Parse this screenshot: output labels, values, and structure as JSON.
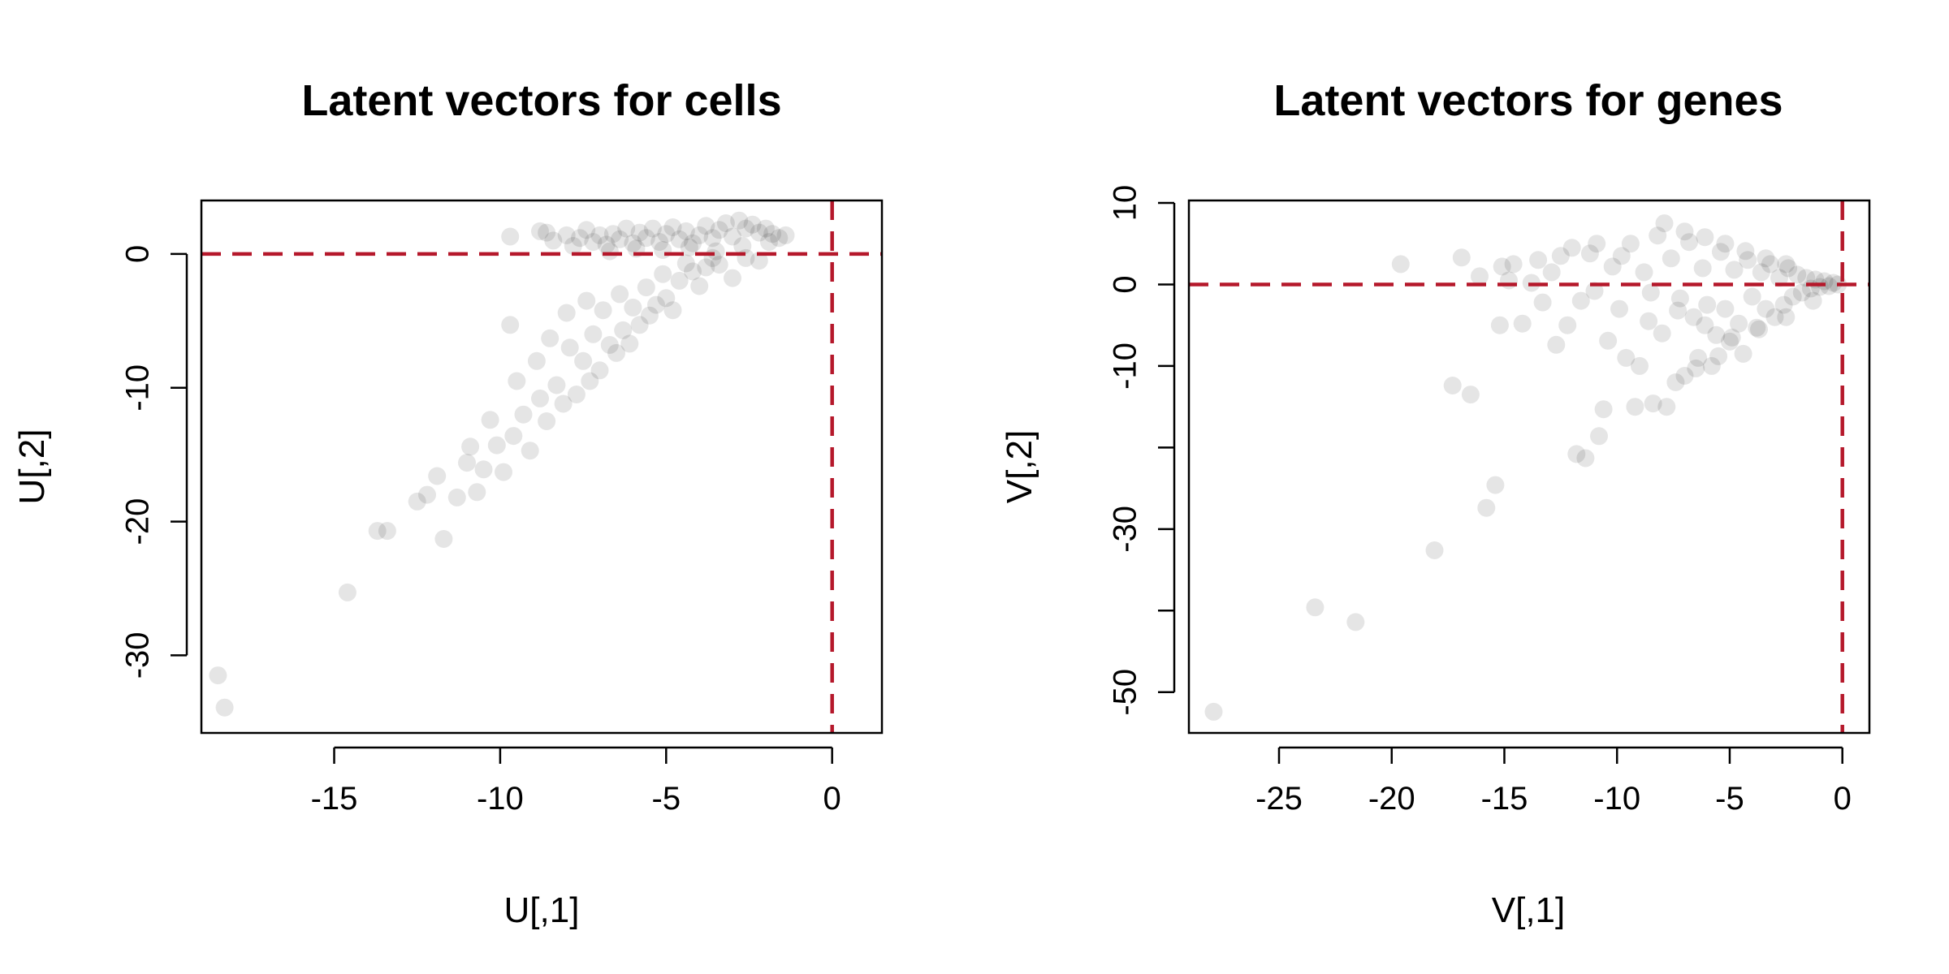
{
  "chart_data": [
    {
      "type": "scatter",
      "title": "Latent vectors for cells",
      "xlabel": "U[,1]",
      "ylabel": "U[,2]",
      "xlim": [
        -19,
        1.5
      ],
      "ylim": [
        -35.8,
        4
      ],
      "xticks": [
        -15,
        -10,
        -5,
        0
      ],
      "yticks": [
        0,
        -10,
        -20,
        -30
      ],
      "xtick_labels": [
        "-15",
        "-10",
        "-5",
        "0"
      ],
      "ytick_labels": [
        "0",
        "-10",
        "-20",
        "-30"
      ],
      "hline": 0,
      "vline": 0,
      "reference_line_color": "#B5182B",
      "point_color": "#000000",
      "point_alpha": 0.1,
      "grid": false,
      "points": [
        [
          -18.5,
          -31.5
        ],
        [
          -18.3,
          -33.9
        ],
        [
          -14.6,
          -25.3
        ],
        [
          -13.7,
          -20.7
        ],
        [
          -13.4,
          -20.7
        ],
        [
          -12.5,
          -18.5
        ],
        [
          -12.2,
          -18.0
        ],
        [
          -11.9,
          -16.6
        ],
        [
          -11.7,
          -21.3
        ],
        [
          -11.3,
          -18.2
        ],
        [
          -11.0,
          -15.6
        ],
        [
          -10.9,
          -14.4
        ],
        [
          -10.7,
          -17.8
        ],
        [
          -10.5,
          -16.1
        ],
        [
          -10.3,
          -12.4
        ],
        [
          -10.1,
          -14.3
        ],
        [
          -9.9,
          -16.3
        ],
        [
          -9.7,
          -5.3
        ],
        [
          -9.6,
          -13.6
        ],
        [
          -9.5,
          -9.5
        ],
        [
          -9.3,
          -12.0
        ],
        [
          -9.1,
          -14.7
        ],
        [
          -8.9,
          -8.0
        ],
        [
          -8.8,
          -10.8
        ],
        [
          -8.6,
          -12.5
        ],
        [
          -8.5,
          -6.3
        ],
        [
          -8.3,
          -9.8
        ],
        [
          -8.1,
          -11.2
        ],
        [
          -8.0,
          -4.4
        ],
        [
          -7.9,
          -7.0
        ],
        [
          -7.7,
          -10.5
        ],
        [
          -7.5,
          -8.0
        ],
        [
          -7.4,
          -3.5
        ],
        [
          -7.3,
          -9.5
        ],
        [
          -7.2,
          -6.0
        ],
        [
          -7.0,
          -8.7
        ],
        [
          -6.9,
          -4.2
        ],
        [
          -6.7,
          -6.8
        ],
        [
          -6.5,
          -7.4
        ],
        [
          -6.4,
          -3.0
        ],
        [
          -6.3,
          -5.7
        ],
        [
          -6.1,
          -6.7
        ],
        [
          -6.0,
          -4.0
        ],
        [
          -5.8,
          -5.3
        ],
        [
          -5.6,
          -2.5
        ],
        [
          -5.5,
          -4.6
        ],
        [
          -5.3,
          -3.8
        ],
        [
          -5.1,
          -1.5
        ],
        [
          -5.0,
          -3.3
        ],
        [
          -4.8,
          -4.2
        ],
        [
          -4.6,
          -2.0
        ],
        [
          -4.4,
          -0.7
        ],
        [
          -4.2,
          -1.3
        ],
        [
          -4.0,
          -2.4
        ],
        [
          -3.8,
          -1.0
        ],
        [
          -3.6,
          -0.3
        ],
        [
          -3.4,
          -0.8
        ],
        [
          -3.0,
          -1.8
        ],
        [
          -2.6,
          -0.3
        ],
        [
          -2.2,
          -0.5
        ],
        [
          -9.7,
          1.3
        ],
        [
          -8.8,
          1.7
        ],
        [
          -8.6,
          1.6
        ],
        [
          -8.4,
          1.0
        ],
        [
          -8.0,
          1.4
        ],
        [
          -7.8,
          0.6
        ],
        [
          -7.6,
          1.2
        ],
        [
          -7.4,
          1.8
        ],
        [
          -7.2,
          0.9
        ],
        [
          -7.0,
          1.4
        ],
        [
          -6.8,
          0.7
        ],
        [
          -6.6,
          1.5
        ],
        [
          -6.4,
          1.1
        ],
        [
          -6.2,
          1.9
        ],
        [
          -6.0,
          0.8
        ],
        [
          -5.8,
          1.6
        ],
        [
          -5.6,
          1.2
        ],
        [
          -5.4,
          1.9
        ],
        [
          -5.2,
          0.9
        ],
        [
          -5.0,
          1.5
        ],
        [
          -4.8,
          2.0
        ],
        [
          -4.6,
          1.1
        ],
        [
          -4.4,
          1.7
        ],
        [
          -4.2,
          0.8
        ],
        [
          -4.0,
          1.4
        ],
        [
          -3.8,
          2.1
        ],
        [
          -3.6,
          1.2
        ],
        [
          -3.4,
          1.8
        ],
        [
          -3.2,
          2.3
        ],
        [
          -3.0,
          1.3
        ],
        [
          -2.8,
          2.5
        ],
        [
          -2.6,
          1.9
        ],
        [
          -2.4,
          2.2
        ],
        [
          -2.2,
          1.6
        ],
        [
          -2.0,
          1.9
        ],
        [
          -1.8,
          1.5
        ],
        [
          -1.6,
          1.2
        ],
        [
          -1.4,
          1.4
        ],
        [
          -6.7,
          0.2
        ],
        [
          -5.9,
          0.4
        ],
        [
          -5.1,
          0.3
        ],
        [
          -4.3,
          0.5
        ],
        [
          -3.5,
          0.2
        ],
        [
          -2.7,
          0.6
        ],
        [
          -1.9,
          0.9
        ]
      ]
    },
    {
      "type": "scatter",
      "title": "Latent vectors for genes",
      "xlabel": "V[,1]",
      "ylabel": "V[,2]",
      "xlim": [
        -29,
        1.2
      ],
      "ylim": [
        -55,
        10.3
      ],
      "xticks": [
        -25,
        -20,
        -15,
        -10,
        -5,
        0
      ],
      "yticks": [
        10,
        0,
        -10,
        -20,
        -30,
        -40,
        -50
      ],
      "xtick_labels": [
        "-25",
        "-20",
        "-15",
        "-10",
        "-5",
        "0"
      ],
      "ytick_labels": [
        "10",
        "0",
        "-10",
        "",
        "-30",
        "",
        "-50"
      ],
      "hline": 0,
      "vline": 0,
      "reference_line_color": "#B5182B",
      "point_color": "#000000",
      "point_alpha": 0.1,
      "grid": false,
      "points": [
        [
          -27.9,
          -52.4
        ],
        [
          -23.4,
          -39.6
        ],
        [
          -21.6,
          -41.4
        ],
        [
          -19.6,
          2.5
        ],
        [
          -18.1,
          -32.6
        ],
        [
          -17.3,
          -12.4
        ],
        [
          -16.9,
          3.3
        ],
        [
          -16.5,
          -13.5
        ],
        [
          -16.1,
          1.0
        ],
        [
          -15.8,
          -27.4
        ],
        [
          -15.4,
          -24.6
        ],
        [
          -15.2,
          -5.0
        ],
        [
          -15.1,
          2.2
        ],
        [
          -14.6,
          2.5
        ],
        [
          -14.2,
          -4.8
        ],
        [
          -13.8,
          0.2
        ],
        [
          -13.3,
          -2.2
        ],
        [
          -12.9,
          1.5
        ],
        [
          -12.7,
          -7.4
        ],
        [
          -12.5,
          3.5
        ],
        [
          -12.2,
          -5.0
        ],
        [
          -11.8,
          -20.8
        ],
        [
          -11.6,
          -2.0
        ],
        [
          -11.4,
          -21.3
        ],
        [
          -11.2,
          3.8
        ],
        [
          -11.0,
          -0.8
        ],
        [
          -10.8,
          -18.6
        ],
        [
          -10.6,
          -15.3
        ],
        [
          -10.4,
          -6.9
        ],
        [
          -10.2,
          2.2
        ],
        [
          -9.9,
          -3.0
        ],
        [
          -9.6,
          -9.0
        ],
        [
          -9.4,
          5.0
        ],
        [
          -9.2,
          -15.0
        ],
        [
          -9.0,
          -10.0
        ],
        [
          -8.8,
          1.5
        ],
        [
          -8.6,
          -4.5
        ],
        [
          -8.4,
          -14.6
        ],
        [
          -8.2,
          6.0
        ],
        [
          -8.0,
          -6.0
        ],
        [
          -7.8,
          -15.0
        ],
        [
          -7.6,
          3.2
        ],
        [
          -7.4,
          -12.0
        ],
        [
          -7.2,
          -1.7
        ],
        [
          -7.0,
          -11.2
        ],
        [
          -6.8,
          5.2
        ],
        [
          -6.6,
          -4.0
        ],
        [
          -6.4,
          -9.0
        ],
        [
          -6.2,
          2.0
        ],
        [
          -6.0,
          -2.5
        ],
        [
          -5.8,
          -10.0
        ],
        [
          -5.6,
          -6.2
        ],
        [
          -5.4,
          4.0
        ],
        [
          -5.2,
          -3.0
        ],
        [
          -5.0,
          -7.0
        ],
        [
          -4.8,
          1.8
        ],
        [
          -4.6,
          -4.8
        ],
        [
          -4.4,
          -8.5
        ],
        [
          -4.2,
          3.0
        ],
        [
          -4.0,
          -1.5
        ],
        [
          -3.8,
          -5.3
        ],
        [
          -3.6,
          1.5
        ],
        [
          -3.4,
          -3.0
        ],
        [
          -3.2,
          2.5
        ],
        [
          -3.0,
          -4.0
        ],
        [
          -2.8,
          0.8
        ],
        [
          -2.6,
          -2.5
        ],
        [
          -2.4,
          2.0
        ],
        [
          -2.2,
          -1.5
        ],
        [
          -2.0,
          1.2
        ],
        [
          -1.8,
          -1.0
        ],
        [
          -1.6,
          0.8
        ],
        [
          -1.4,
          -0.5
        ],
        [
          -1.2,
          0.6
        ],
        [
          -1.0,
          -0.3
        ],
        [
          -0.8,
          0.4
        ],
        [
          -0.6,
          -0.2
        ],
        [
          -0.4,
          0.2
        ],
        [
          -0.2,
          0.0
        ],
        [
          -7.9,
          7.5
        ],
        [
          -7.0,
          6.5
        ],
        [
          -6.1,
          5.8
        ],
        [
          -5.2,
          5.0
        ],
        [
          -4.3,
          4.1
        ],
        [
          -3.4,
          3.2
        ],
        [
          -2.5,
          2.5
        ],
        [
          -8.5,
          -1.0
        ],
        [
          -7.3,
          -3.2
        ],
        [
          -6.1,
          -5.0
        ],
        [
          -4.9,
          -6.5
        ],
        [
          -3.7,
          -5.5
        ],
        [
          -2.5,
          -4.0
        ],
        [
          -1.3,
          -2.0
        ],
        [
          -9.8,
          3.5
        ],
        [
          -10.9,
          5.0
        ],
        [
          -12.0,
          4.5
        ],
        [
          -13.5,
          3.0
        ],
        [
          -14.8,
          0.5
        ],
        [
          -6.5,
          -10.3
        ],
        [
          -5.5,
          -8.8
        ]
      ]
    }
  ]
}
